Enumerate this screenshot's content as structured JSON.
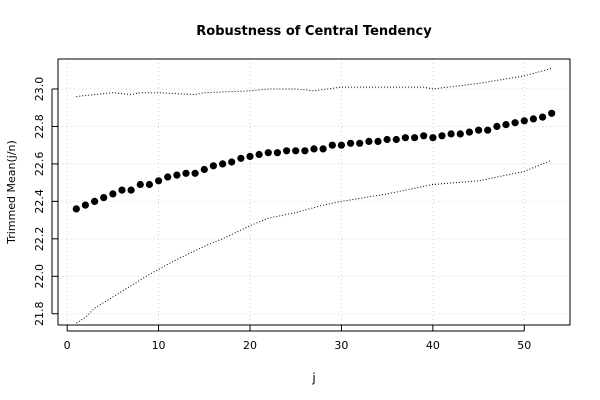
{
  "chart_data": {
    "type": "scatter",
    "title": "Robustness of Central Tendency",
    "xlabel": "j",
    "ylabel": "Trimmed Mean(j/n)",
    "xlim": [
      -1,
      55
    ],
    "ylim": [
      21.74,
      23.16
    ],
    "xticks": [
      0,
      10,
      20,
      30,
      40,
      50
    ],
    "yticks": [
      21.8,
      22.0,
      22.2,
      22.4,
      22.6,
      22.8,
      23.0
    ],
    "ytick_labels": [
      "21.8",
      "22.0",
      "22.2",
      "22.4",
      "22.6",
      "22.8",
      "23.0"
    ],
    "grid": true,
    "series": [
      {
        "role": "trimmed-mean",
        "style": "points",
        "x": [
          1,
          2,
          3,
          4,
          5,
          6,
          7,
          8,
          9,
          10,
          11,
          12,
          13,
          14,
          15,
          16,
          17,
          18,
          19,
          20,
          21,
          22,
          23,
          24,
          25,
          26,
          27,
          28,
          29,
          30,
          31,
          32,
          33,
          34,
          35,
          36,
          37,
          38,
          39,
          40,
          41,
          42,
          43,
          44,
          45,
          46,
          47,
          48,
          49,
          50,
          51,
          52,
          53
        ],
        "y": [
          22.36,
          22.38,
          22.4,
          22.42,
          22.44,
          22.46,
          22.46,
          22.49,
          22.49,
          22.51,
          22.53,
          22.54,
          22.55,
          22.55,
          22.57,
          22.59,
          22.6,
          22.61,
          22.63,
          22.64,
          22.65,
          22.66,
          22.66,
          22.67,
          22.67,
          22.67,
          22.68,
          22.68,
          22.7,
          22.7,
          22.71,
          22.71,
          22.72,
          22.72,
          22.73,
          22.73,
          22.74,
          22.74,
          22.75,
          22.74,
          22.75,
          22.76,
          22.76,
          22.77,
          22.78,
          22.78,
          22.8,
          22.81,
          22.82,
          22.83,
          22.84,
          22.85,
          22.87
        ]
      },
      {
        "role": "upper-bound",
        "style": "dotted",
        "x": [
          1,
          5,
          7,
          8,
          10,
          14,
          15,
          20,
          22,
          25,
          27,
          30,
          35,
          39,
          40,
          45,
          50,
          53
        ],
        "y": [
          22.96,
          22.98,
          22.97,
          22.98,
          22.98,
          22.97,
          22.98,
          22.99,
          23.0,
          23.0,
          22.99,
          23.01,
          23.01,
          23.01,
          23.0,
          23.03,
          23.07,
          23.11
        ]
      },
      {
        "role": "lower-bound",
        "style": "dotted",
        "x": [
          1,
          2,
          3,
          5,
          7,
          9,
          12,
          15,
          17,
          20,
          22,
          25,
          28,
          30,
          35,
          39,
          40,
          45,
          50,
          53
        ],
        "y": [
          21.75,
          21.78,
          21.83,
          21.89,
          21.95,
          22.01,
          22.09,
          22.16,
          22.2,
          22.27,
          22.31,
          22.34,
          22.38,
          22.4,
          22.44,
          22.48,
          22.49,
          22.51,
          22.56,
          22.62
        ]
      }
    ],
    "colors": {
      "points": "#000000",
      "bounds": "#000000",
      "grid": "#d3d3d3",
      "axis": "#000000"
    }
  }
}
